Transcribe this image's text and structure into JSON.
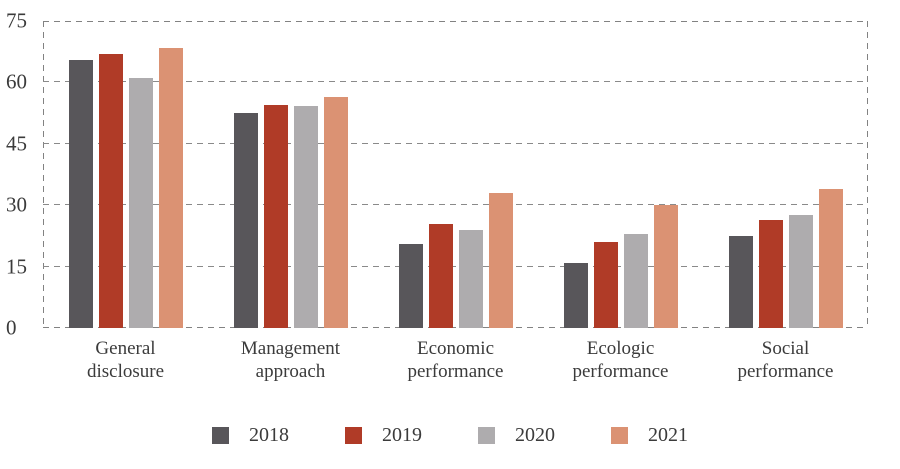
{
  "chart_data": {
    "type": "bar",
    "title": "",
    "xlabel": "",
    "ylabel": "",
    "categories": [
      "General\ndisclosure",
      "Management\napproach",
      "Economic\nperformance",
      "Ecologic\nperformance",
      "Social\nperformance"
    ],
    "series": [
      {
        "name": "2018",
        "color": "#58565a",
        "values": [
          65.5,
          52.5,
          20.5,
          16,
          22.5
        ]
      },
      {
        "name": "2019",
        "color": "#b03b27",
        "values": [
          67,
          54.5,
          25.5,
          21,
          26.5
        ]
      },
      {
        "name": "2020",
        "color": "#aeacae",
        "values": [
          61,
          54.3,
          24,
          23,
          27.5
        ]
      },
      {
        "name": "2021",
        "color": "#db9273",
        "values": [
          68.5,
          56.5,
          33,
          30,
          34
        ]
      }
    ],
    "ylim": [
      0,
      75
    ],
    "yticks": [
      0,
      15,
      30,
      45,
      60,
      75
    ],
    "grid": "horizontal-dashed",
    "plot_border": "dashed",
    "legend_position": "bottom",
    "colors": {
      "text": "#3b3b3b",
      "gridline": "#828282",
      "background": "#ffffff"
    }
  }
}
